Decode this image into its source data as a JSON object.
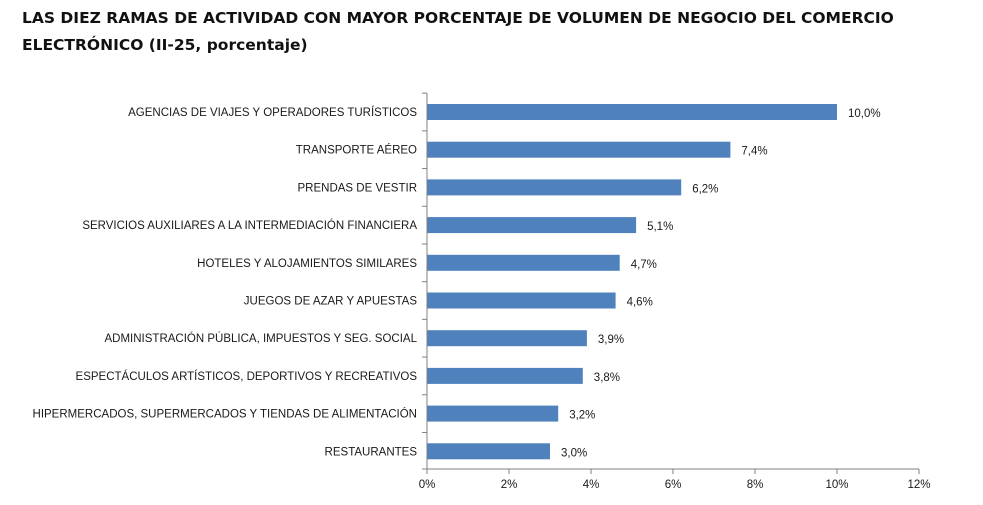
{
  "chart_data": {
    "type": "bar",
    "orientation": "horizontal",
    "title": "LAS DIEZ RAMAS DE ACTIVIDAD CON MAYOR PORCENTAJE DE VOLUMEN DE NEGOCIO DEL COMERCIO ELECTRÓNICO (II-25, porcentaje)",
    "categories": [
      "AGENCIAS DE VIAJES Y OPERADORES TURÍSTICOS",
      "TRANSPORTE AÉREO",
      "PRENDAS DE VESTIR",
      "SERVICIOS AUXILIARES A LA INTERMEDIACIÓN FINANCIERA",
      "HOTELES  Y ALOJAMIENTOS SIMILARES",
      "JUEGOS DE AZAR Y APUESTAS",
      "ADMINISTRACIÓN PÚBLICA, IMPUESTOS Y SEG. SOCIAL",
      "ESPECTÁCULOS ARTÍSTICOS, DEPORTIVOS Y RECREATIVOS",
      "HIPERMERCADOS, SUPERMERCADOS Y TIENDAS DE ALIMENTACIÓN",
      "RESTAURANTES"
    ],
    "values": [
      10.0,
      7.4,
      6.2,
      5.1,
      4.7,
      4.6,
      3.9,
      3.8,
      3.2,
      3.0
    ],
    "value_labels": [
      "10,0%",
      "7,4%",
      "6,2%",
      "5,1%",
      "4,7%",
      "4,6%",
      "3,9%",
      "3,8%",
      "3,2%",
      "3,0%"
    ],
    "xlim": [
      0,
      12
    ],
    "xticks": [
      0,
      2,
      4,
      6,
      8,
      10,
      12
    ],
    "xtick_labels": [
      "0%",
      "2%",
      "4%",
      "6%",
      "8%",
      "10%",
      "12%"
    ],
    "xlabel": "",
    "ylabel": "",
    "grid": false,
    "legend": "none",
    "bar_color": "#4F81BD"
  }
}
